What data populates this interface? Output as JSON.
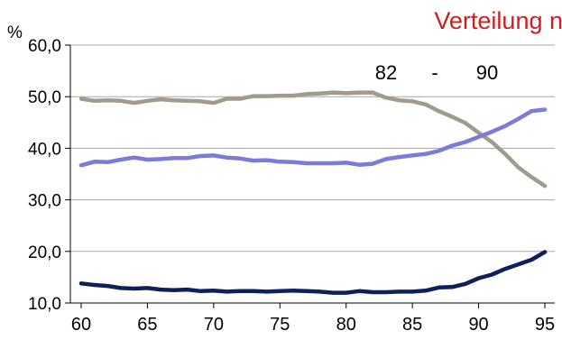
{
  "chart_data": {
    "type": "line",
    "title": "Verteilung n",
    "ylabel": "%",
    "annotation": {
      "start": "82",
      "dash": "-",
      "end": "90"
    },
    "x": [
      60,
      61,
      62,
      63,
      64,
      65,
      66,
      67,
      68,
      69,
      70,
      71,
      72,
      73,
      74,
      75,
      76,
      77,
      78,
      79,
      80,
      81,
      82,
      83,
      84,
      85,
      86,
      87,
      88,
      89,
      90,
      91,
      92,
      93,
      94,
      95
    ],
    "xticks": [
      "60",
      "65",
      "70",
      "75",
      "80",
      "85",
      "90",
      "95"
    ],
    "yticks": [
      "10,0",
      "20,0",
      "30,0",
      "40,0",
      "50,0",
      "60,0"
    ],
    "xlim": [
      60,
      95
    ],
    "ylim": [
      10,
      60
    ],
    "grid": "horizontal",
    "series": [
      {
        "color": "#a09b8c",
        "values": [
          49.6,
          49.2,
          49.3,
          49.2,
          48.8,
          49.2,
          49.5,
          49.3,
          49.2,
          49.1,
          48.8,
          49.6,
          49.6,
          50.1,
          50.1,
          50.2,
          50.2,
          50.5,
          50.6,
          50.8,
          50.7,
          50.8,
          50.8,
          49.8,
          49.3,
          49.1,
          48.5,
          47.2,
          46.1,
          44.9,
          43.0,
          41.2,
          38.9,
          36.3,
          34.4,
          32.7
        ]
      },
      {
        "color": "#7b7bd8",
        "values": [
          36.7,
          37.4,
          37.3,
          37.8,
          38.2,
          37.8,
          37.9,
          38.1,
          38.1,
          38.5,
          38.6,
          38.2,
          38.0,
          37.6,
          37.7,
          37.4,
          37.3,
          37.1,
          37.1,
          37.1,
          37.2,
          36.8,
          37.0,
          37.9,
          38.3,
          38.6,
          38.9,
          39.5,
          40.5,
          41.2,
          42.2,
          43.2,
          44.3,
          45.7,
          47.2,
          47.5
        ]
      },
      {
        "color": "#0f1f5c",
        "values": [
          13.8,
          13.5,
          13.3,
          12.9,
          12.8,
          12.9,
          12.6,
          12.5,
          12.6,
          12.3,
          12.4,
          12.2,
          12.3,
          12.3,
          12.2,
          12.3,
          12.4,
          12.3,
          12.2,
          12.0,
          12.0,
          12.3,
          12.1,
          12.1,
          12.2,
          12.2,
          12.4,
          13.0,
          13.1,
          13.7,
          14.8,
          15.5,
          16.6,
          17.5,
          18.4,
          19.9
        ]
      }
    ]
  }
}
